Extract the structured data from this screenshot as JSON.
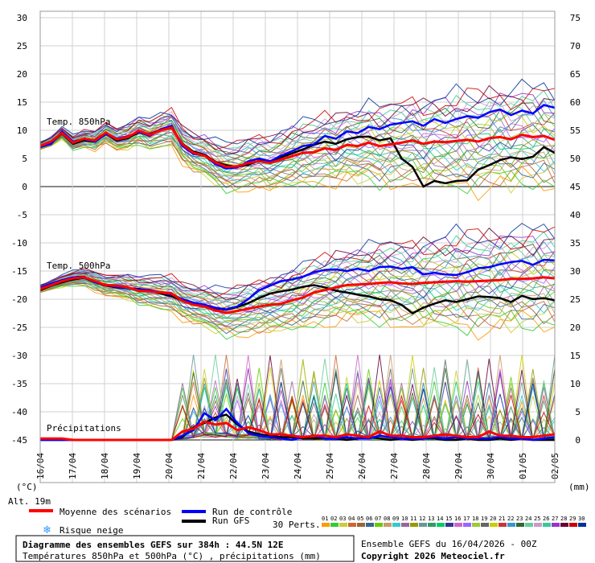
{
  "chart_data": {
    "type": "line",
    "title": "Diagramme des ensembles GEFS sur 384h : 44.5N 12E",
    "subtitle": "Températures 850hPa et 500hPa (°C) , précipitations (mm)",
    "run_info": "Ensemble GEFS du 16/04/2026 - 00Z",
    "copyright": "Copyright 2026 Meteociel.fr",
    "altitude": "Alt. 19m",
    "left_unit": "(°C)",
    "right_unit": "(mm)",
    "panel_labels": {
      "t850": "Temp. 850hPa",
      "t500": "Temp. 500hPa",
      "precip": "Précipitations"
    },
    "left_axis": {
      "range": [
        -45,
        30
      ],
      "ticks": [
        "30",
        "25",
        "20",
        "15",
        "10",
        "5",
        "0",
        "-5",
        "-10",
        "-15",
        "-20",
        "-25",
        "-30",
        "-35",
        "-40",
        "-45"
      ]
    },
    "right_axis": {
      "ticks": [
        "75",
        "70",
        "65",
        "60",
        "55",
        "50",
        "45",
        "40",
        "35",
        "30",
        "25",
        "20",
        "15",
        "10",
        "5",
        "0"
      ]
    },
    "x_labels": [
      "16/04",
      "17/04",
      "18/04",
      "19/04",
      "20/04",
      "21/04",
      "22/04",
      "23/04",
      "24/04",
      "25/04",
      "26/04",
      "27/04",
      "28/04",
      "29/04",
      "30/04",
      "01/05",
      "02/05"
    ],
    "legend": {
      "mean": "Moyenne des scénarios",
      "control": "Run de contrôle",
      "gfs": "Run GFS",
      "snow": "Risque neige",
      "perts": "30 Perts.",
      "pert_labels": [
        "01",
        "02",
        "03",
        "04",
        "05",
        "06",
        "07",
        "08",
        "09",
        "10",
        "11",
        "12",
        "13",
        "14",
        "15",
        "16",
        "17",
        "18",
        "19",
        "20",
        "21",
        "22",
        "23",
        "24",
        "25",
        "26",
        "27",
        "28",
        "29",
        "30"
      ]
    },
    "colors": {
      "mean": "#ff0000",
      "control": "#0000ff",
      "gfs": "#000000",
      "snow": "#3399ff",
      "perts": [
        "#ff9900",
        "#33cc33",
        "#cccc33",
        "#cc6633",
        "#996633",
        "#336699",
        "#66cc00",
        "#cc9966",
        "#33cccc",
        "#996699",
        "#999900",
        "#669999",
        "#339966",
        "#00cc66",
        "#333399",
        "#cc66cc",
        "#9966ff",
        "#99cc33",
        "#666666",
        "#cccc00",
        "#cc3333",
        "#3399cc",
        "#336633",
        "#66cc99",
        "#cc99cc",
        "#33cc99",
        "#9933cc",
        "#660033",
        "#cc0000",
        "#003399"
      ]
    },
    "series": [
      {
        "name": "Moyenne des scénarios",
        "var": "t850",
        "values": [
          7.2,
          8,
          9.5,
          7.8,
          8.5,
          8.2,
          9.6,
          8.4,
          8.8,
          9.9,
          9.2,
          10,
          10.5,
          7.5,
          6,
          5.5,
          4.3,
          3.5,
          3.6,
          4.2,
          4.5,
          4.2,
          4.8,
          5.4,
          6,
          6.1,
          6.8,
          6.5,
          7.4,
          7.2,
          7.8,
          7.2,
          7.5,
          7.8,
          8.2,
          7.6,
          8,
          7.9,
          8.1,
          8.3,
          8,
          8.6,
          8.8,
          8.4,
          9.2,
          8.8,
          9,
          8.3
        ]
      },
      {
        "name": "Run de contrôle",
        "var": "t850",
        "values": [
          7,
          7.6,
          9.8,
          8,
          8.4,
          8,
          9.3,
          8.5,
          8.9,
          9.7,
          9,
          10.2,
          10.8,
          7.2,
          5.8,
          5.5,
          4,
          3.2,
          3.4,
          4.5,
          5,
          4.5,
          5.5,
          6.3,
          7.2,
          7.5,
          9,
          8.5,
          9.8,
          9.5,
          10.6,
          10.2,
          11,
          11.3,
          11.6,
          10.8,
          12,
          11.3,
          12,
          12.5,
          12.2,
          13.2,
          13.7,
          12.7,
          13.5,
          13,
          14.5,
          14
        ]
      },
      {
        "name": "Run GFS",
        "var": "t850",
        "values": [
          7,
          7.8,
          9.4,
          7.6,
          8.2,
          8,
          9.4,
          8.2,
          8.6,
          9.6,
          9.3,
          10.1,
          10.4,
          7.6,
          6.2,
          5.7,
          4.4,
          3.8,
          3.5,
          3.9,
          4.6,
          4.5,
          5.2,
          5.9,
          6.6,
          7.4,
          8,
          7.6,
          8.4,
          8.8,
          8.9,
          8.2,
          8.6,
          5,
          3.5,
          0,
          1,
          0.6,
          1,
          1.1,
          3,
          3.8,
          4.7,
          5.2,
          4.9,
          5.3,
          7,
          6
        ]
      },
      {
        "name": "Moyenne des scénarios",
        "var": "t500",
        "values": [
          -18.2,
          -17.5,
          -16.8,
          -16.3,
          -16.1,
          -16.8,
          -17.5,
          -17.6,
          -17.9,
          -18.5,
          -18.6,
          -18.8,
          -19,
          -20.3,
          -21,
          -21.3,
          -22,
          -22.4,
          -22.1,
          -21.7,
          -21.3,
          -21,
          -20.8,
          -20.2,
          -19.7,
          -18.8,
          -18.4,
          -17.9,
          -17.5,
          -17.4,
          -17.3,
          -17.1,
          -17,
          -17.2,
          -17.3,
          -17.1,
          -17,
          -16.9,
          -16.8,
          -16.9,
          -16.8,
          -16.7,
          -16.6,
          -16.4,
          -16.4,
          -16.3,
          -16.1,
          -16.3
        ]
      },
      {
        "name": "Run de contrôle",
        "var": "t500",
        "values": [
          -18,
          -17.2,
          -16.6,
          -16.1,
          -16,
          -17,
          -17.4,
          -17.8,
          -18,
          -18.3,
          -18.4,
          -18.8,
          -19.2,
          -20,
          -20.6,
          -21,
          -21.5,
          -21.8,
          -21.3,
          -20,
          -18.4,
          -17.6,
          -16.8,
          -16.5,
          -16,
          -15.2,
          -14.8,
          -14.7,
          -15,
          -14.6,
          -15,
          -14.3,
          -14.2,
          -14.6,
          -14.3,
          -15.6,
          -15.3,
          -15.6,
          -15.7,
          -15.2,
          -14.5,
          -14.3,
          -13.8,
          -13.4,
          -13.2,
          -13.9,
          -13,
          -13.1
        ]
      },
      {
        "name": "Run GFS",
        "var": "t500",
        "values": [
          -18.4,
          -17.6,
          -17,
          -16.5,
          -16.2,
          -17,
          -17.6,
          -17.9,
          -18,
          -18.2,
          -18.5,
          -19,
          -19.5,
          -20.2,
          -20.8,
          -21.2,
          -21.6,
          -21.9,
          -21.4,
          -20.7,
          -19.8,
          -19,
          -18.6,
          -18.3,
          -17.8,
          -17.5,
          -17.9,
          -18.5,
          -18.8,
          -19.2,
          -19.5,
          -20,
          -20.2,
          -21,
          -22.5,
          -21.5,
          -20.8,
          -20.2,
          -20.5,
          -20,
          -19.5,
          -19.6,
          -19.8,
          -20.5,
          -19.4,
          -20,
          -19.8,
          -20.2
        ]
      },
      {
        "name": "Moyenne des scénarios",
        "var": "precip",
        "values": [
          0.1,
          0.1,
          0.1,
          0,
          0,
          0,
          0,
          0,
          0,
          0,
          0,
          0,
          0,
          0.6,
          0.8,
          1.3,
          1.1,
          1.2,
          0.7,
          0.9,
          0.7,
          0.4,
          0.4,
          0.3,
          0.2,
          0.3,
          0.3,
          0.2,
          0.4,
          0.3,
          0.2,
          0.6,
          0.3,
          0.3,
          0.2,
          0.2,
          0.3,
          0.4,
          0.3,
          0.2,
          0.2,
          0.6,
          0.3,
          0.3,
          0.2,
          0.2,
          0.3,
          0.4
        ]
      },
      {
        "name": "Run de contrôle",
        "var": "precip",
        "values": [
          0,
          0,
          0,
          0,
          0,
          0,
          0,
          0,
          0,
          0,
          0,
          0,
          0,
          0.3,
          0.7,
          1.9,
          1.4,
          2.2,
          1.2,
          0.5,
          0.3,
          0.2,
          0.1,
          0,
          0.2,
          0.3,
          0.1,
          0.1,
          0.2,
          0.1,
          0.1,
          0.3,
          0.2,
          0.1,
          0.1,
          0.1,
          0.2,
          0.1,
          0.2,
          0.1,
          0.1,
          0.1,
          0.2,
          0.1,
          0.1,
          0,
          0.1,
          0.2
        ]
      },
      {
        "name": "Run GFS",
        "var": "precip",
        "values": [
          0,
          0,
          0,
          0,
          0,
          0,
          0,
          0,
          0,
          0,
          0,
          0,
          0,
          0.2,
          0.9,
          1.2,
          1.6,
          1.8,
          1.1,
          0.6,
          0.4,
          0.3,
          0.2,
          0.2,
          0.1,
          0.1,
          0.1,
          0.1,
          0,
          0.1,
          0.2,
          0.1,
          0,
          0.1,
          0,
          0.1,
          0.1,
          0,
          0,
          0.1,
          0,
          0,
          0.1,
          0,
          0.1,
          0,
          0,
          0
        ]
      }
    ]
  }
}
